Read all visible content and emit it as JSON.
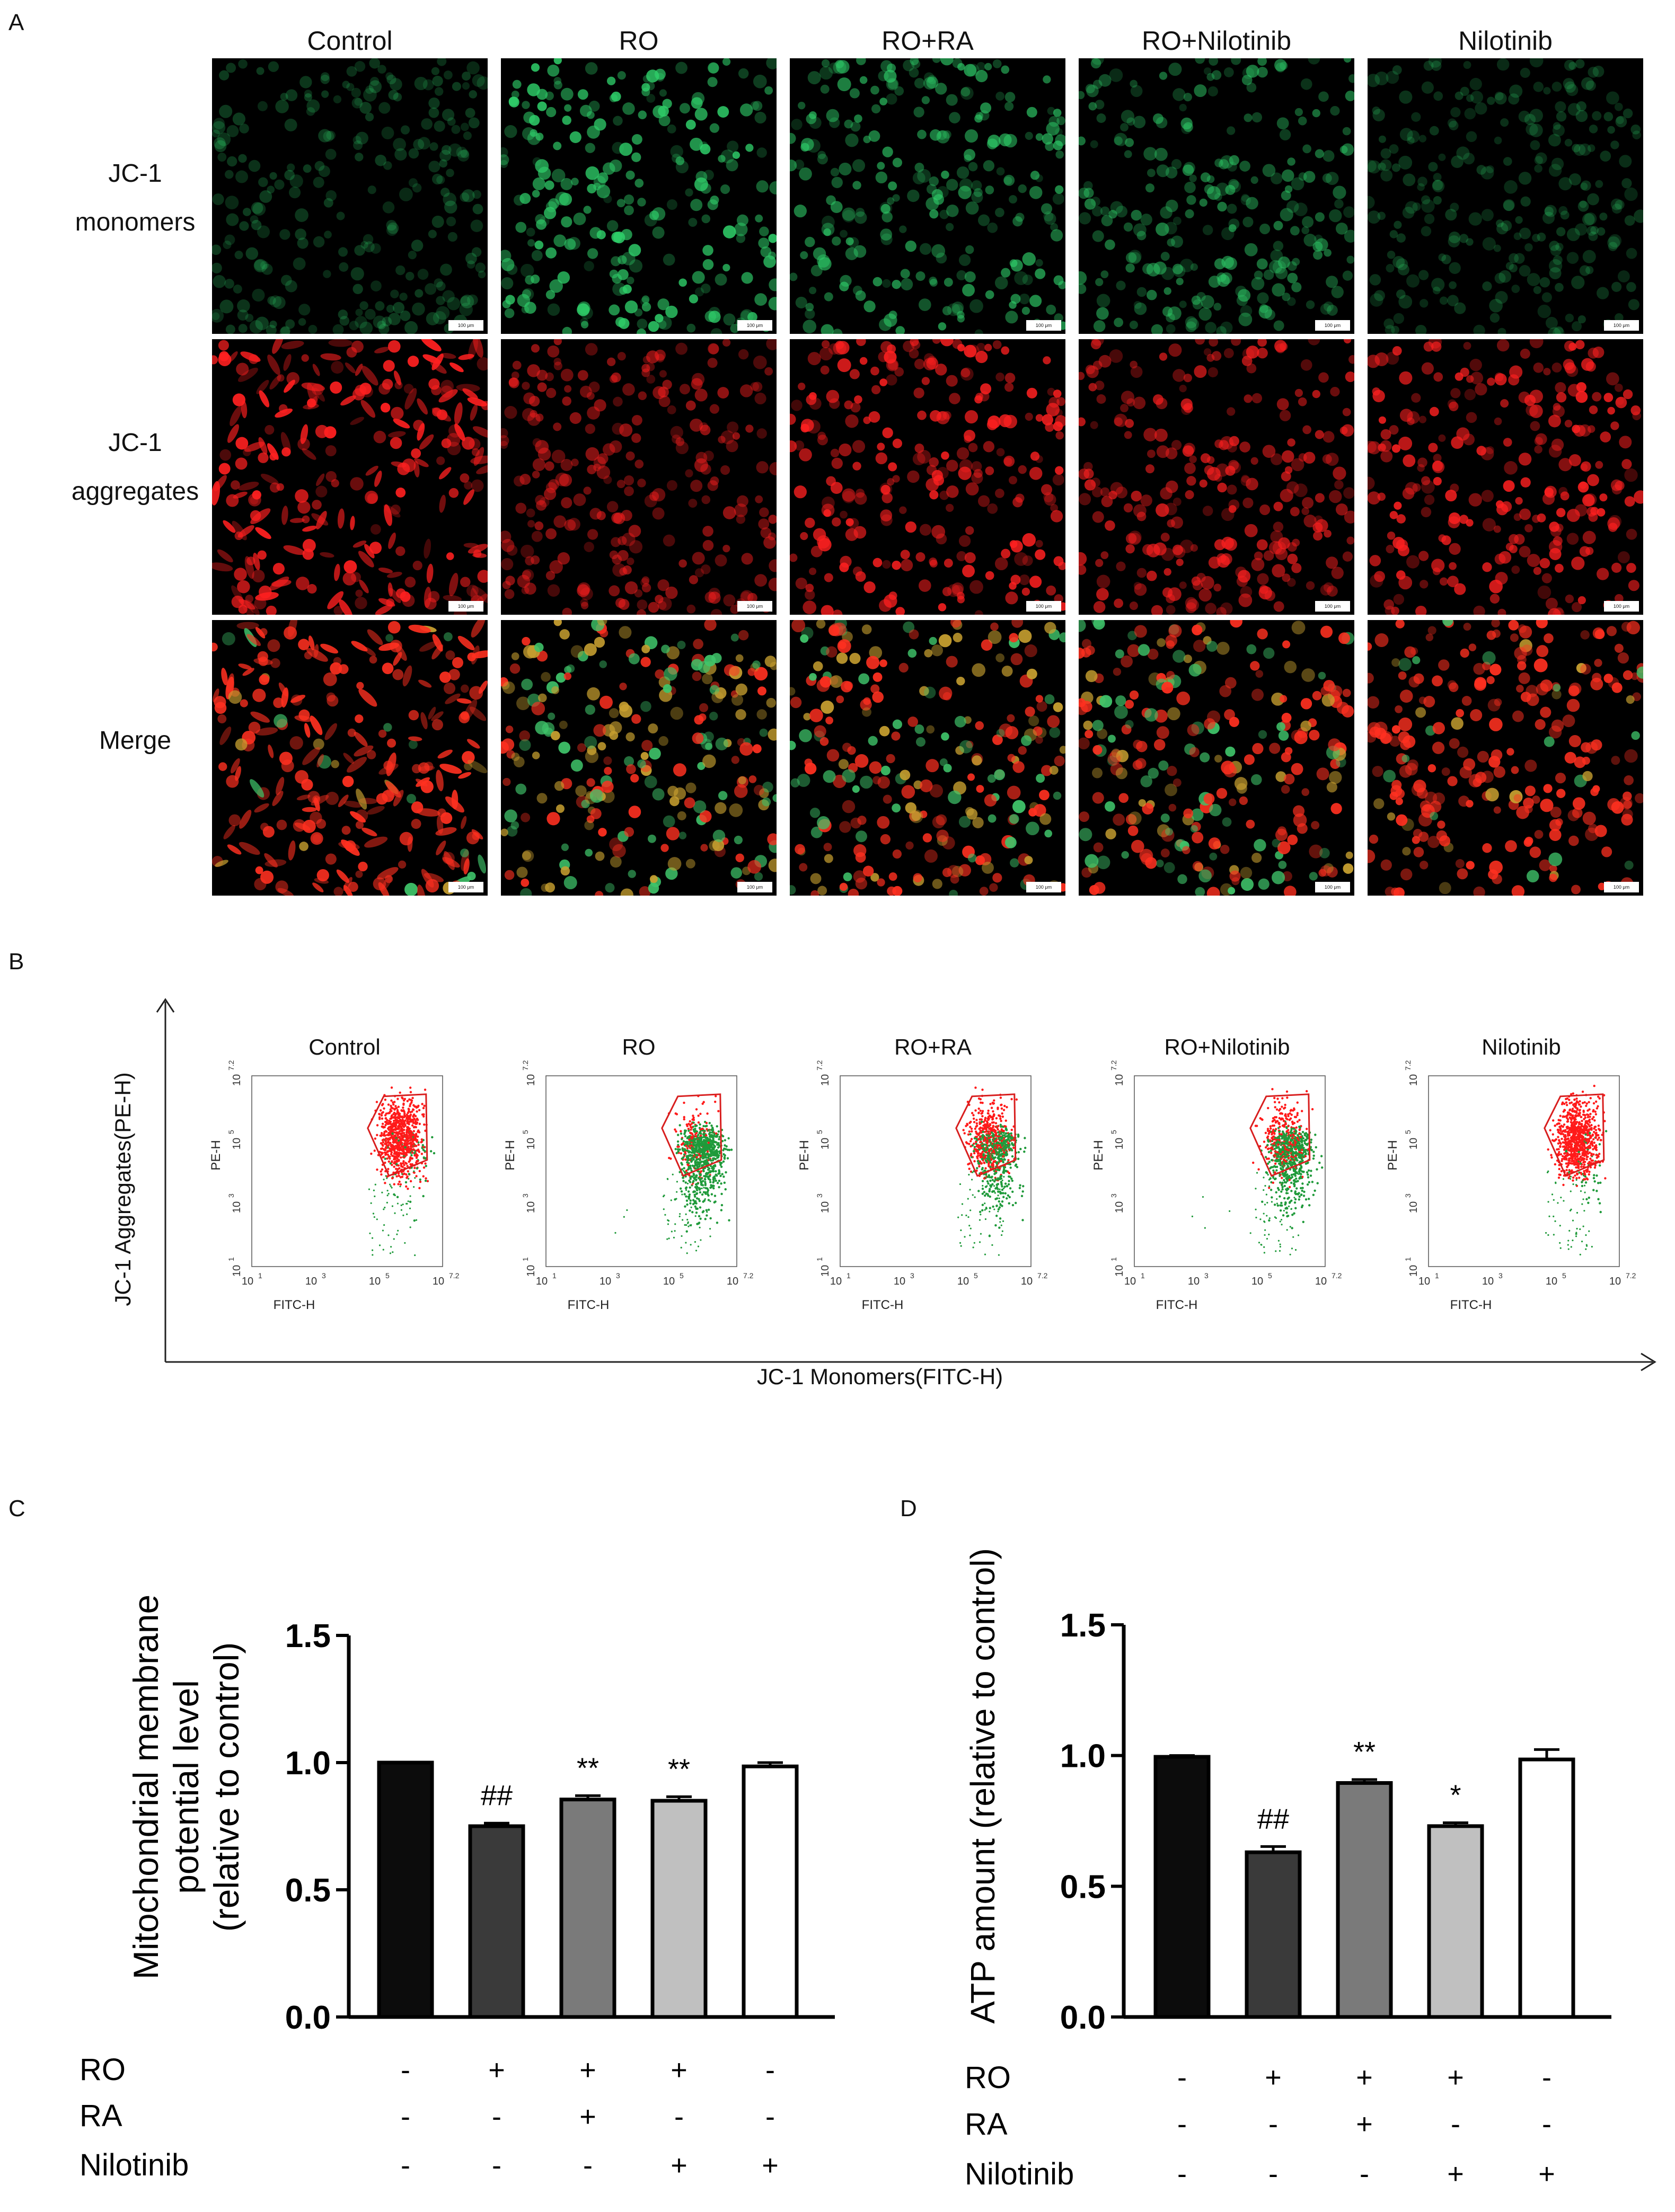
{
  "panel_a": {
    "label": "A",
    "columns": [
      "Control",
      "RO",
      "RO+RA",
      "RO+Nilotinib",
      "Nilotinib"
    ],
    "rows": [
      {
        "line1": "JC-1",
        "line2": "monomers",
        "channel": "green"
      },
      {
        "line1": "JC-1",
        "line2": "aggregates",
        "channel": "red"
      },
      {
        "line1": "Merge",
        "line2": "",
        "channel": "merge"
      }
    ],
    "green_intensity": [
      0.15,
      1.0,
      0.7,
      0.55,
      0.12
    ],
    "red_intensity": [
      1.0,
      0.45,
      0.9,
      0.7,
      0.9
    ],
    "scalebar_text": "100 μm",
    "colors": {
      "green": "#2fcf6a",
      "red": "#ff2020",
      "background": "#000000"
    }
  },
  "panel_b": {
    "label": "B",
    "columns": [
      "Control",
      "RO",
      "RO+RA",
      "RO+Nilotinib",
      "Nilotinib"
    ],
    "plot_xlabel": "FITC-H",
    "plot_ylabel": "PE-H",
    "tick_labels": [
      "10",
      "1",
      "10",
      "3",
      "10",
      "5",
      "10",
      "7.2"
    ],
    "outer_ylabel": "JC-1 Aggregates(PE-H)",
    "outer_xlabel": "JC-1 Monomers(FITC-H)",
    "colors": {
      "gated": "#ff1a1a",
      "ungated": "#1f9a3a",
      "gate": "#d81e1e"
    }
  },
  "panel_c": {
    "label": "C",
    "ylabel_lines": [
      "Mitochondrial membrane",
      "potential level",
      "(relative to control)"
    ],
    "ytick_labels": [
      "0.0",
      "0.5",
      "1.0",
      "1.5"
    ],
    "sig_labels": [
      "",
      "##",
      "**",
      "**",
      ""
    ],
    "condition_rows": [
      {
        "name": "RO",
        "signs": [
          "-",
          "+",
          "+",
          "+",
          "-"
        ]
      },
      {
        "name": "RA",
        "signs": [
          "-",
          "-",
          "+",
          "-",
          "-"
        ]
      },
      {
        "name": "Nilotinib",
        "signs": [
          "-",
          "-",
          "-",
          "+",
          "+"
        ]
      }
    ]
  },
  "panel_d": {
    "label": "D",
    "ylabel_lines": [
      "ATP amount (relative to control)"
    ],
    "ytick_labels": [
      "0.0",
      "0.5",
      "1.0",
      "1.5"
    ],
    "sig_labels": [
      "",
      "##",
      "**",
      "*",
      ""
    ],
    "condition_rows": [
      {
        "name": "RO",
        "signs": [
          "-",
          "+",
          "+",
          "+",
          "-"
        ]
      },
      {
        "name": "RA",
        "signs": [
          "-",
          "-",
          "+",
          "-",
          "-"
        ]
      },
      {
        "name": "Nilotinib",
        "signs": [
          "-",
          "-",
          "-",
          "+",
          "+"
        ]
      }
    ]
  },
  "chart_data": [
    {
      "type": "bar",
      "panel": "C",
      "categories": [
        "1",
        "2",
        "3",
        "4",
        "5"
      ],
      "values": [
        1.0,
        0.75,
        0.855,
        0.85,
        0.985
      ],
      "errors": [
        0.0,
        0.012,
        0.015,
        0.016,
        0.015
      ],
      "ylim": [
        0,
        1.5
      ],
      "ylabel": "Mitochondrial membrane potential level (relative to control)",
      "bar_colors": [
        "#0c0c0c",
        "#3a3a3a",
        "#7a7a7a",
        "#c0c0c0",
        "#ffffff"
      ]
    },
    {
      "type": "bar",
      "panel": "D",
      "categories": [
        "1",
        "2",
        "3",
        "4",
        "5"
      ],
      "values": [
        0.995,
        0.63,
        0.895,
        0.73,
        0.985
      ],
      "errors": [
        0.005,
        0.022,
        0.013,
        0.013,
        0.038
      ],
      "ylim": [
        0,
        1.5
      ],
      "ylabel": "ATP amount (relative to control)",
      "bar_colors": [
        "#0c0c0c",
        "#3a3a3a",
        "#7a7a7a",
        "#c0c0c0",
        "#ffffff"
      ]
    }
  ]
}
